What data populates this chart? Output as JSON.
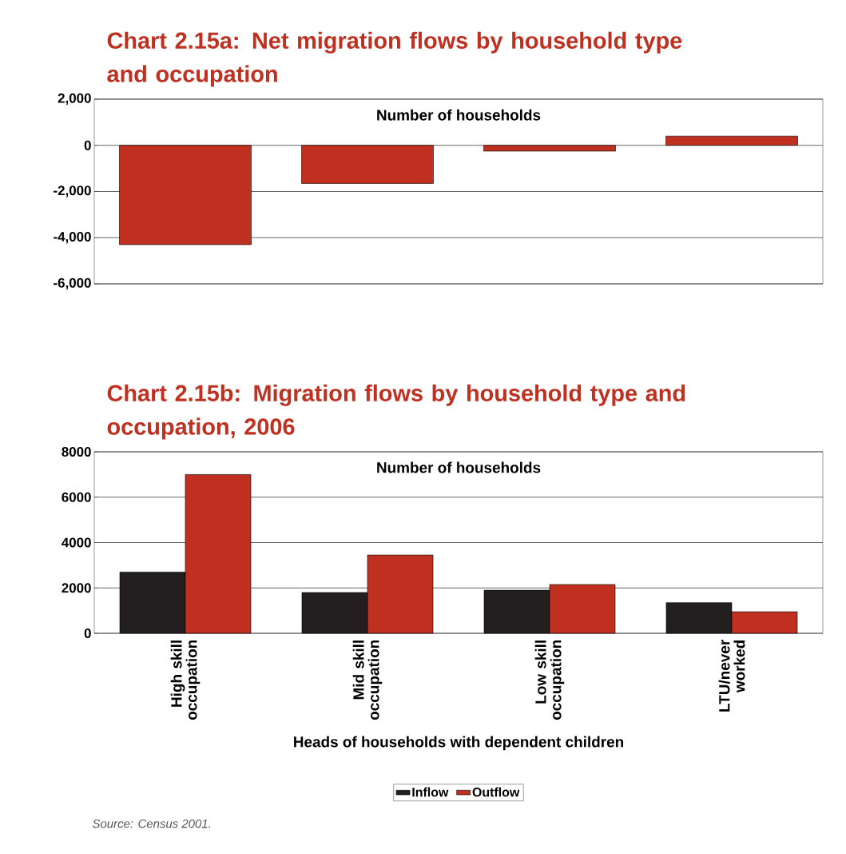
{
  "chart_data": [
    {
      "type": "bar",
      "title": "Chart 2.15a: Net migration flows by household type and occupation",
      "ylabel": "Number of households",
      "categories": [
        null,
        null,
        null,
        null
      ],
      "values": [
        -4300,
        -1650,
        -250,
        400
      ],
      "color": "#bf3020",
      "ylim": [
        -6000,
        2000
      ],
      "yticks": [
        {
          "value": -6000,
          "label": "-6,000"
        },
        {
          "value": -4000,
          "label": "-4,000"
        },
        {
          "value": -2000,
          "label": "-2,000"
        },
        {
          "value": 0,
          "label": "0"
        },
        {
          "value": 2000,
          "label": "2,000"
        }
      ],
      "grid": "y"
    },
    {
      "type": "bar",
      "title": "Chart 2.15b: Migration flows by household type and occupation, 2006",
      "ylabel": "Number of households",
      "xlabel": "Heads of households with dependent children",
      "categories": [
        "High skill occupation",
        "Mid skill occupation",
        "Low skill occupation",
        "LTU/never worked"
      ],
      "series": [
        {
          "name": "Inflow",
          "color": "#231f20",
          "values": [
            2700,
            1800,
            1900,
            1350
          ]
        },
        {
          "name": "Outflow",
          "color": "#bf3020",
          "values": [
            7000,
            3450,
            2150,
            950
          ]
        }
      ],
      "ylim": [
        0,
        8000
      ],
      "yticks": [
        0,
        2000,
        4000,
        6000,
        8000
      ],
      "grid": "y",
      "legend": "bottom",
      "annotations": [
        "Source: Census 2001."
      ]
    }
  ]
}
